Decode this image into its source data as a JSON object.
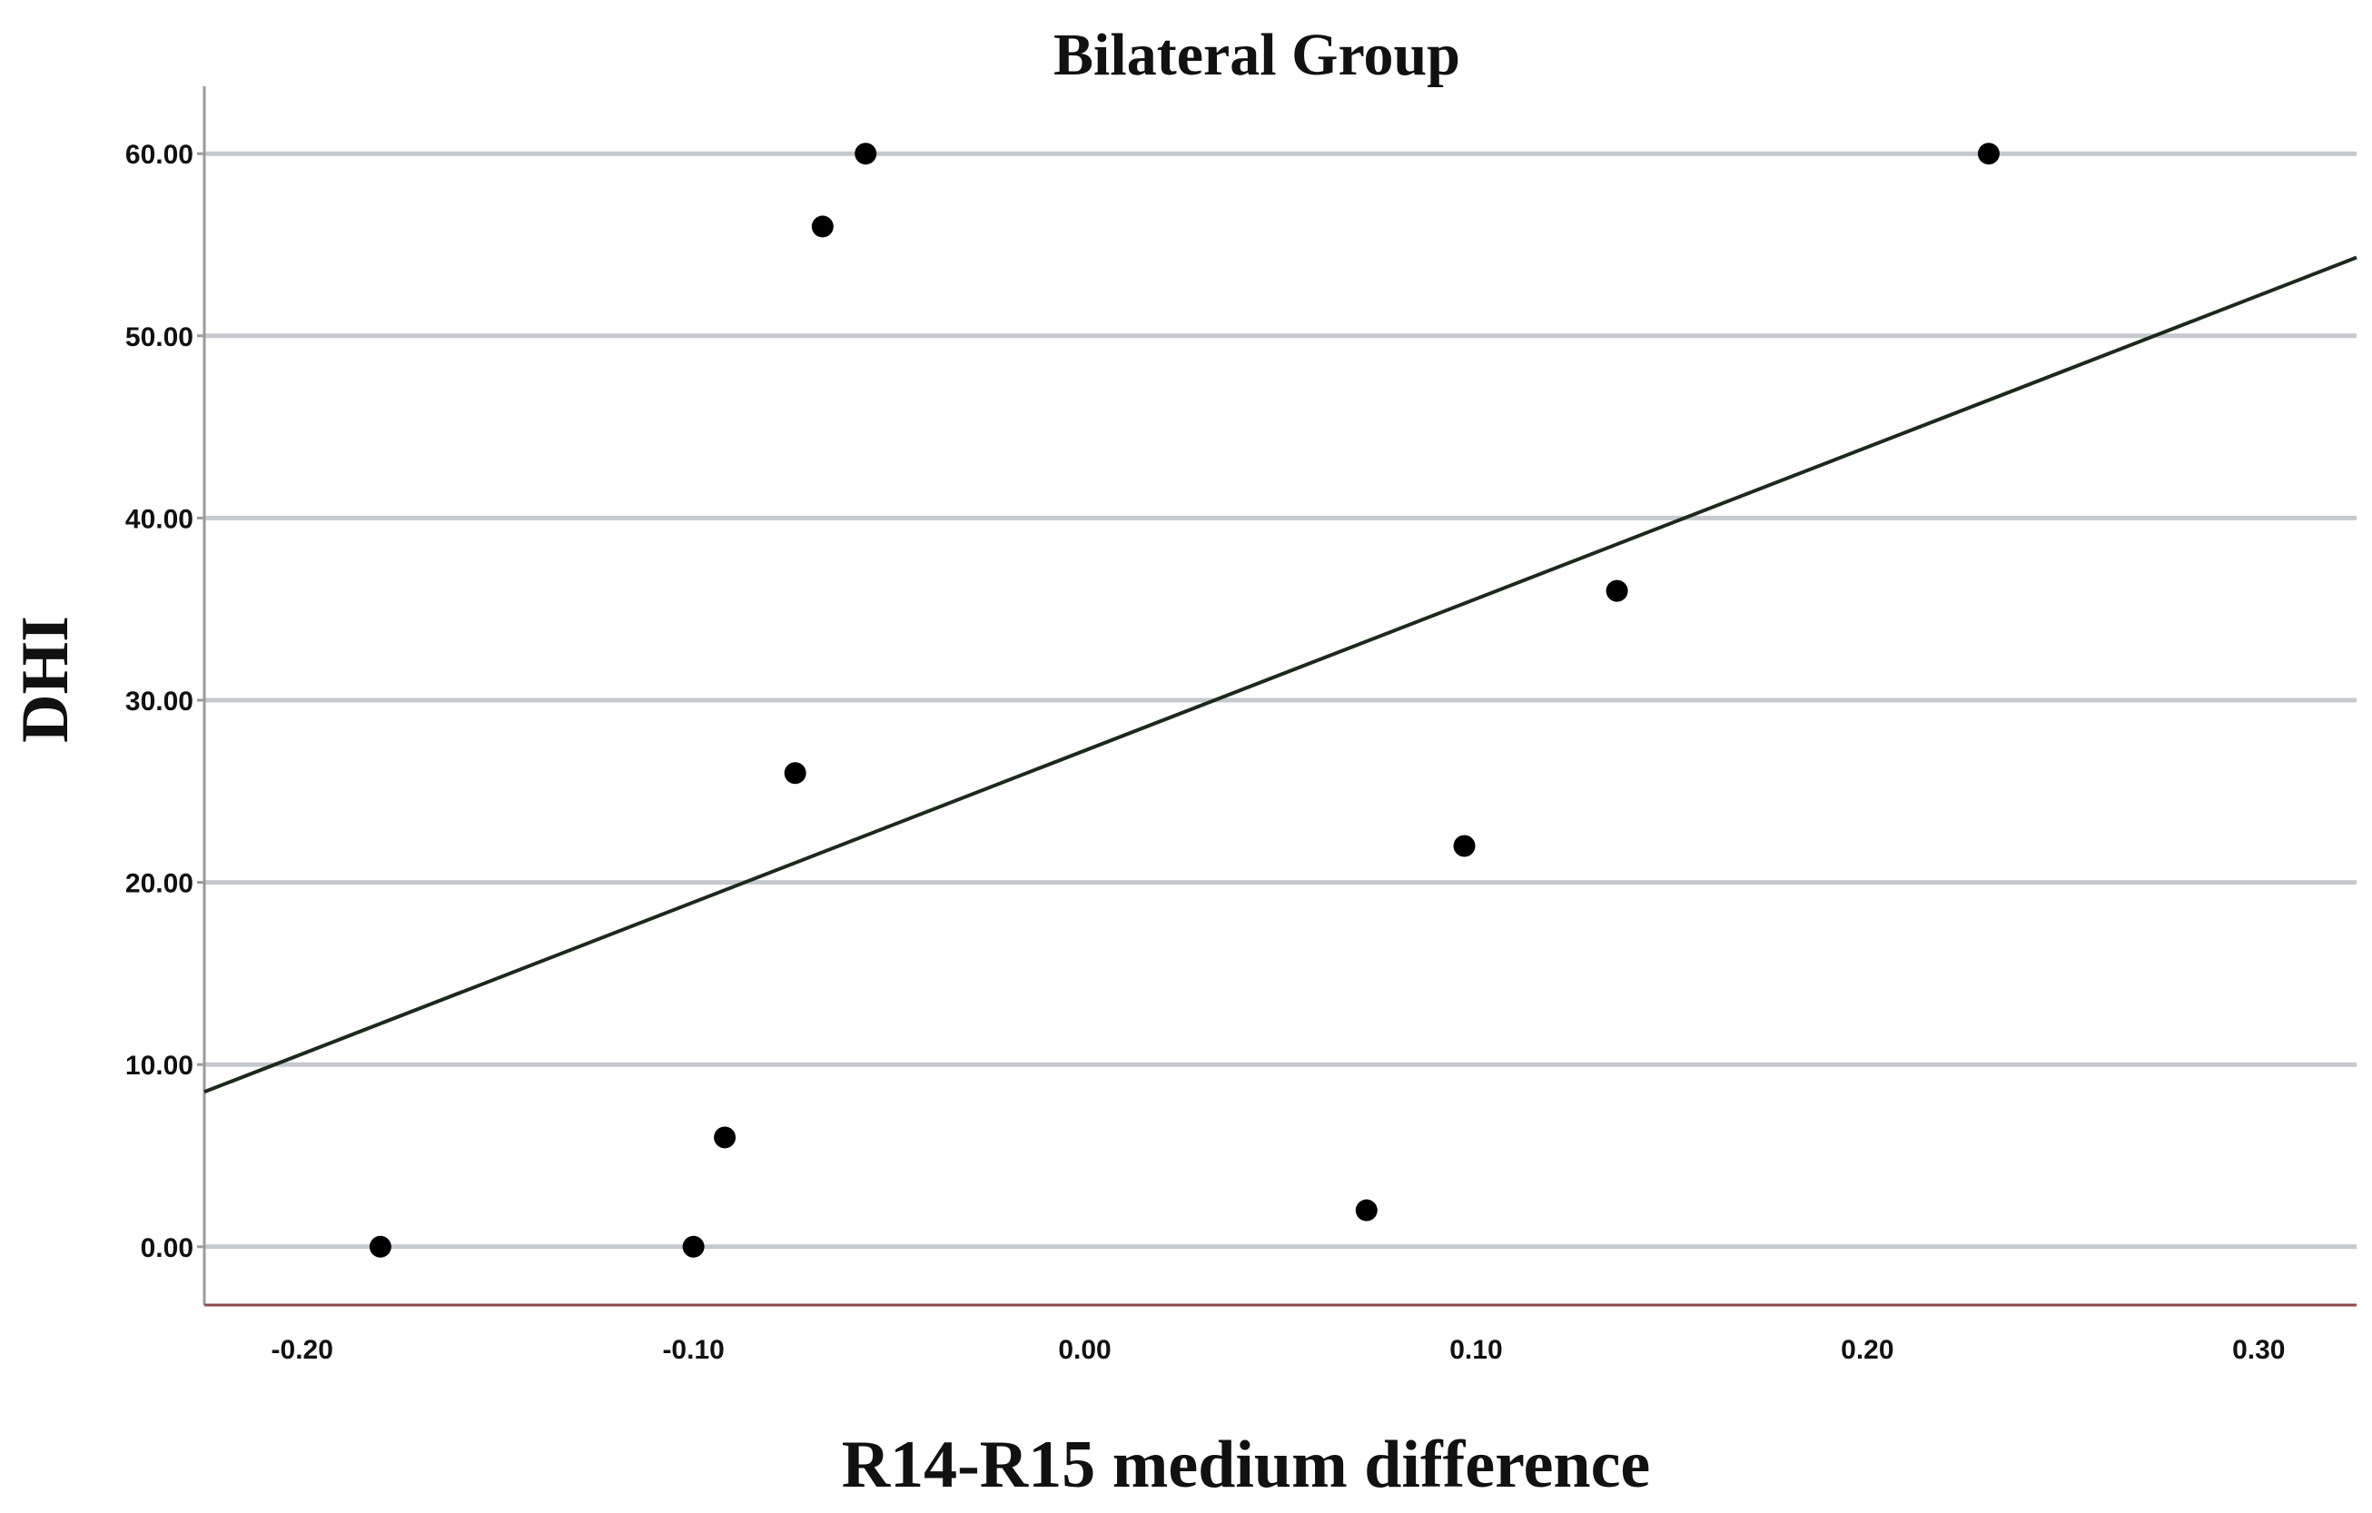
{
  "chart_data": {
    "type": "scatter",
    "title": "Bilateral Group",
    "xlabel": "R14-R15 medium difference",
    "ylabel": "DHI",
    "xlim": [
      -0.225,
      0.325
    ],
    "ylim": [
      -3.2,
      63.2
    ],
    "x_ticks": [
      -0.2,
      -0.1,
      0.0,
      0.1,
      0.2,
      0.3
    ],
    "x_tick_labels": [
      "-0.20",
      "-0.10",
      "0.00",
      "0.10",
      "0.20",
      "0.30"
    ],
    "y_ticks": [
      0,
      10,
      20,
      30,
      40,
      50,
      60
    ],
    "y_tick_labels": [
      "0.00",
      "10.00",
      "20.00",
      "30.00",
      "40.00",
      "50.00",
      "60.00"
    ],
    "grid": "horizontal",
    "legend": "none",
    "series": [
      {
        "points": [
          {
            "x": -0.18,
            "y": 0
          },
          {
            "x": -0.1,
            "y": 0
          },
          {
            "x": -0.092,
            "y": 6
          },
          {
            "x": -0.074,
            "y": 26
          },
          {
            "x": -0.067,
            "y": 56
          },
          {
            "x": -0.056,
            "y": 60
          },
          {
            "x": 0.072,
            "y": 2
          },
          {
            "x": 0.097,
            "y": 22
          },
          {
            "x": 0.136,
            "y": 36
          },
          {
            "x": 0.231,
            "y": 60
          }
        ]
      }
    ],
    "fit_line": {
      "x": [
        -0.225,
        0.325
      ],
      "y": [
        8.5,
        54.3
      ]
    },
    "colors": {
      "points": "#000000",
      "fit_line": "#1c2a1c",
      "grid": "#c4c9cd",
      "x_axis": "#8b4a4a",
      "y_axis": "#9a9a9a"
    }
  }
}
